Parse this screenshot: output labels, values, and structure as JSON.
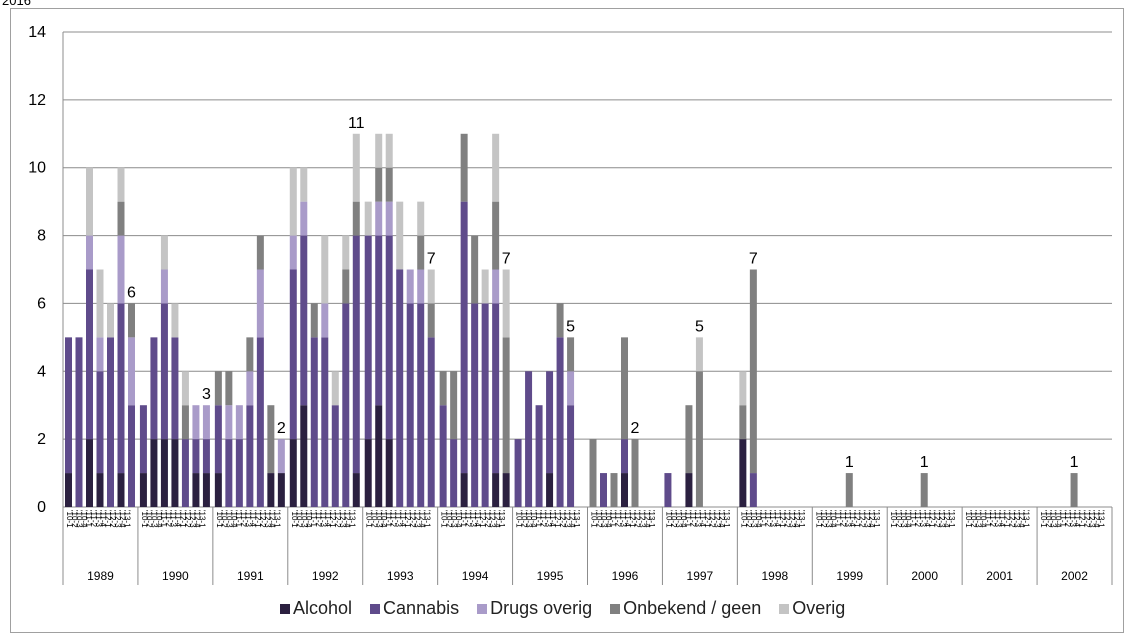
{
  "top_fragment": "2016",
  "chart_data": {
    "type": "bar",
    "stacked": true,
    "ylim": [
      0,
      14
    ],
    "yticks": [
      0,
      2,
      4,
      6,
      8,
      10,
      12,
      14
    ],
    "grid": true,
    "legend_position": "bottom",
    "series": [
      {
        "name": "Alcohol",
        "color": "#2b2040"
      },
      {
        "name": "Cannabis",
        "color": "#5f4b8b"
      },
      {
        "name": "Drugs overig",
        "color": "#a99bc9"
      },
      {
        "name": "Onbekend / geen",
        "color": "#808080"
      },
      {
        "name": "Overig",
        "color": "#c4c4c4"
      }
    ],
    "period_labels": [
      "'10-1",
      "'10-2",
      "'10-3",
      "'10-4",
      "'11-1",
      "'11-2",
      "'11-3",
      "'11-4",
      "'12-1",
      "'12-2",
      "'12-3",
      "'12-4",
      "'13-1"
    ],
    "groups": [
      {
        "year": "1989",
        "bars": [
          [
            1,
            4,
            0,
            0,
            0
          ],
          [
            0,
            5,
            0,
            0,
            0
          ],
          [
            2,
            5,
            1,
            0,
            2
          ],
          [
            1,
            3,
            1,
            0,
            2
          ],
          [
            0,
            5,
            0,
            0,
            1
          ],
          [
            1,
            5,
            2,
            1,
            1
          ],
          [
            0,
            3,
            2,
            1,
            0
          ]
        ],
        "label": "6"
      },
      {
        "year": "1990",
        "bars": [
          [
            1,
            2,
            0,
            0,
            0
          ],
          [
            2,
            3,
            0,
            0,
            0
          ],
          [
            2,
            4,
            1,
            0,
            1
          ],
          [
            2,
            3,
            0,
            0,
            1
          ],
          [
            0,
            2,
            0,
            1,
            1
          ],
          [
            1,
            1,
            1,
            0,
            0
          ],
          [
            1,
            1,
            1,
            0,
            0
          ]
        ],
        "label": "3"
      },
      {
        "year": "1991",
        "bars": [
          [
            1,
            2,
            0,
            1,
            0
          ],
          [
            0,
            2,
            1,
            1,
            0
          ],
          [
            0,
            2,
            1,
            0,
            0
          ],
          [
            0,
            3,
            1,
            1,
            0
          ],
          [
            0,
            5,
            2,
            1,
            0
          ],
          [
            1,
            0,
            0,
            2,
            0
          ],
          [
            1,
            0,
            1,
            0,
            0
          ]
        ],
        "label": "2"
      },
      {
        "year": "1992",
        "bars": [
          [
            2,
            5,
            1,
            0,
            2
          ],
          [
            3,
            5,
            1,
            0,
            1
          ],
          [
            0,
            5,
            0,
            1,
            0
          ],
          [
            0,
            5,
            1,
            0,
            2
          ],
          [
            0,
            3,
            0,
            0,
            1
          ],
          [
            0,
            6,
            0,
            1,
            1
          ],
          [
            1,
            7,
            0,
            1,
            2
          ]
        ],
        "label": "11"
      },
      {
        "year": "1993",
        "bars": [
          [
            2,
            6,
            0,
            0,
            1
          ],
          [
            3,
            5,
            1,
            1,
            1
          ],
          [
            2,
            6,
            1,
            1,
            1
          ],
          [
            0,
            7,
            0,
            0,
            2
          ],
          [
            0,
            6,
            1,
            0,
            0
          ],
          [
            0,
            6,
            1,
            1,
            1
          ],
          [
            0,
            5,
            0,
            1,
            1
          ]
        ],
        "label": "7"
      },
      {
        "year": "1994",
        "bars": [
          [
            0,
            3,
            0,
            1,
            0
          ],
          [
            0,
            2,
            0,
            2,
            0
          ],
          [
            1,
            8,
            0,
            2,
            0
          ],
          [
            0,
            6,
            0,
            2,
            0
          ],
          [
            0,
            6,
            0,
            0,
            1
          ],
          [
            1,
            5,
            1,
            2,
            2
          ],
          [
            1,
            0,
            0,
            4,
            2
          ]
        ],
        "label": "7"
      },
      {
        "year": "1995",
        "bars": [
          [
            0,
            2,
            0,
            0,
            0
          ],
          [
            0,
            4,
            0,
            0,
            0
          ],
          [
            0,
            3,
            0,
            0,
            0
          ],
          [
            1,
            3,
            0,
            0,
            0
          ],
          [
            0,
            5,
            0,
            1,
            0
          ],
          [
            0,
            3,
            1,
            1,
            0
          ]
        ],
        "label": "5"
      },
      {
        "year": "1996",
        "bars": [
          [
            0,
            0,
            0,
            2,
            0
          ],
          [
            0,
            1,
            0,
            0,
            0
          ],
          [
            0,
            0,
            0,
            1,
            0
          ],
          [
            1,
            1,
            0,
            3,
            0
          ],
          [
            0,
            0,
            0,
            2,
            0
          ]
        ],
        "label": "2"
      },
      {
        "year": "1997",
        "bars": [
          [
            0,
            1,
            0,
            0,
            0
          ],
          [
            0,
            0,
            0,
            0,
            0
          ],
          [
            1,
            0,
            0,
            2,
            0
          ],
          [
            0,
            0,
            0,
            4,
            1
          ]
        ],
        "label": "5"
      },
      {
        "year": "1998",
        "bars": [
          [
            2,
            0,
            0,
            1,
            1
          ],
          [
            0,
            1,
            0,
            6,
            0
          ]
        ],
        "label": "7"
      },
      {
        "year": "1999",
        "bars": [
          [
            0,
            0,
            0,
            0,
            0
          ],
          [
            0,
            0,
            0,
            0,
            0
          ],
          [
            0,
            0,
            0,
            0,
            0
          ],
          [
            0,
            0,
            0,
            1,
            0
          ]
        ],
        "label": "1"
      },
      {
        "year": "2000",
        "bars": [
          [
            0,
            0,
            0,
            0,
            0
          ],
          [
            0,
            0,
            0,
            0,
            0
          ],
          [
            0,
            0,
            0,
            0,
            0
          ],
          [
            0,
            0,
            0,
            1,
            0
          ]
        ],
        "label": "1"
      },
      {
        "year": "2001",
        "bars": [
          [
            0,
            0,
            0,
            0,
            0
          ],
          [
            0,
            0,
            0,
            0,
            0
          ],
          [
            0,
            0,
            0,
            0,
            0
          ],
          [
            0,
            0,
            0,
            0,
            0
          ]
        ]
      },
      {
        "year": "2002",
        "bars": [
          [
            0,
            0,
            0,
            0,
            0
          ],
          [
            0,
            0,
            0,
            0,
            0
          ],
          [
            0,
            0,
            0,
            0,
            0
          ],
          [
            0,
            0,
            0,
            1,
            0
          ]
        ],
        "label": "1"
      }
    ]
  }
}
